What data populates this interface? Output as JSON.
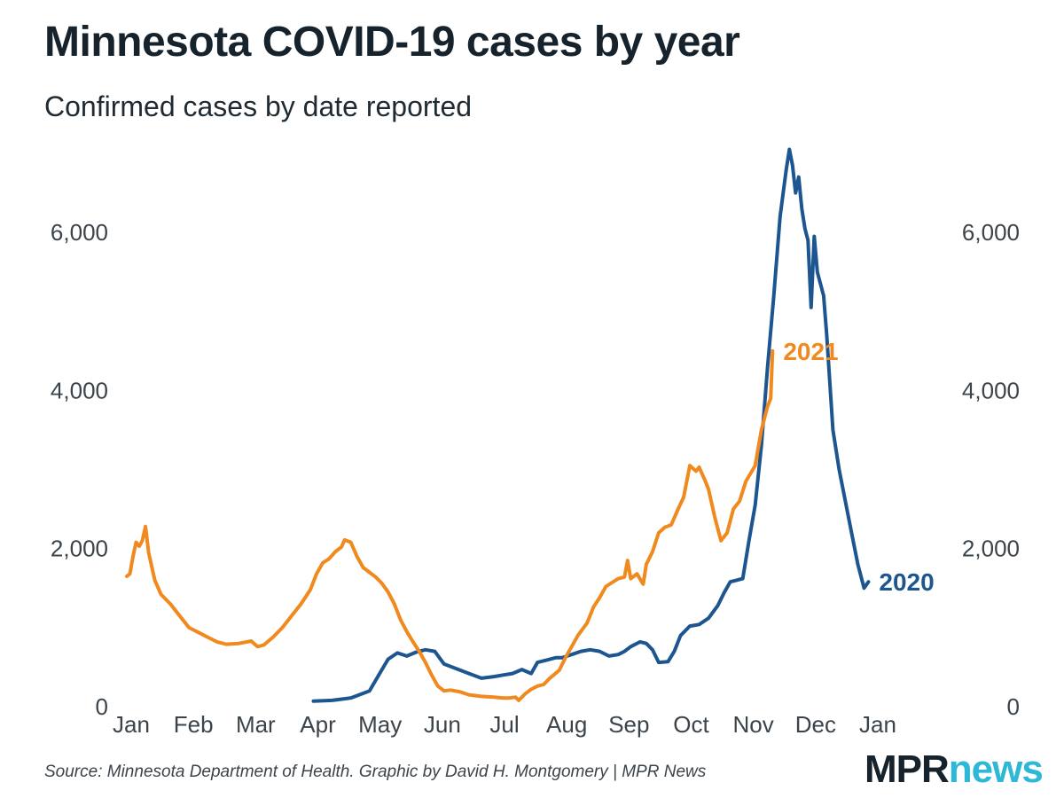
{
  "header": {
    "title": "Minnesota COVID-19 cases by year",
    "subtitle": "Confirmed cases by date reported"
  },
  "footer": {
    "source": "Source: Minnesota Department of Health. Graphic by David H. Montgomery | MPR News",
    "logo_part1": "MPR",
    "logo_part2": "news"
  },
  "colors": {
    "series_2020": "#1d5590",
    "series_2021": "#f0891e",
    "logo_accent": "#2cb8d6",
    "text": "#1f2a33"
  },
  "chart_data": {
    "type": "line",
    "title": "Minnesota COVID-19 cases by year",
    "subtitle": "Confirmed cases by date reported",
    "xlabel": "",
    "ylabel": "",
    "x_unit": "month index (0 = Jan 1, 12 = next Jan 1)",
    "xlim": [
      0,
      12
    ],
    "ylim": [
      0,
      7000
    ],
    "x_ticks": [
      {
        "x": 0,
        "label": "Jan"
      },
      {
        "x": 1,
        "label": "Feb"
      },
      {
        "x": 2,
        "label": "Mar"
      },
      {
        "x": 3,
        "label": "Apr"
      },
      {
        "x": 4,
        "label": "May"
      },
      {
        "x": 5,
        "label": "Jun"
      },
      {
        "x": 6,
        "label": "Jul"
      },
      {
        "x": 7,
        "label": "Aug"
      },
      {
        "x": 8,
        "label": "Sep"
      },
      {
        "x": 9,
        "label": "Oct"
      },
      {
        "x": 10,
        "label": "Nov"
      },
      {
        "x": 11,
        "label": "Dec"
      },
      {
        "x": 12,
        "label": "Jan"
      }
    ],
    "y_ticks": [
      {
        "y": 0,
        "label": "0"
      },
      {
        "y": 2000,
        "label": "2,000"
      },
      {
        "y": 4000,
        "label": "4,000"
      },
      {
        "y": 6000,
        "label": "6,000"
      }
    ],
    "grid": false,
    "series": [
      {
        "name": "2020",
        "label": "2020",
        "color": "#1d5590",
        "points": [
          [
            3.0,
            70
          ],
          [
            3.3,
            80
          ],
          [
            3.6,
            110
          ],
          [
            3.9,
            200
          ],
          [
            4.05,
            400
          ],
          [
            4.2,
            600
          ],
          [
            4.35,
            680
          ],
          [
            4.5,
            640
          ],
          [
            4.65,
            690
          ],
          [
            4.8,
            720
          ],
          [
            4.95,
            700
          ],
          [
            5.1,
            540
          ],
          [
            5.3,
            480
          ],
          [
            5.5,
            420
          ],
          [
            5.7,
            360
          ],
          [
            5.9,
            380
          ],
          [
            6.05,
            400
          ],
          [
            6.2,
            420
          ],
          [
            6.35,
            470
          ],
          [
            6.5,
            420
          ],
          [
            6.6,
            560
          ],
          [
            6.75,
            590
          ],
          [
            6.9,
            620
          ],
          [
            7.0,
            620
          ],
          [
            7.15,
            660
          ],
          [
            7.3,
            700
          ],
          [
            7.45,
            720
          ],
          [
            7.6,
            700
          ],
          [
            7.75,
            640
          ],
          [
            7.9,
            660
          ],
          [
            8.0,
            700
          ],
          [
            8.1,
            760
          ],
          [
            8.25,
            820
          ],
          [
            8.35,
            800
          ],
          [
            8.45,
            720
          ],
          [
            8.55,
            560
          ],
          [
            8.7,
            570
          ],
          [
            8.8,
            700
          ],
          [
            8.9,
            900
          ],
          [
            9.05,
            1020
          ],
          [
            9.2,
            1040
          ],
          [
            9.35,
            1120
          ],
          [
            9.5,
            1280
          ],
          [
            9.6,
            1440
          ],
          [
            9.7,
            1580
          ],
          [
            9.8,
            1600
          ],
          [
            9.9,
            1620
          ],
          [
            10.0,
            2100
          ],
          [
            10.1,
            2550
          ],
          [
            10.2,
            3300
          ],
          [
            10.3,
            4300
          ],
          [
            10.4,
            5200
          ],
          [
            10.5,
            6200
          ],
          [
            10.6,
            6800
          ],
          [
            10.65,
            7050
          ],
          [
            10.7,
            6850
          ],
          [
            10.75,
            6500
          ],
          [
            10.8,
            6700
          ],
          [
            10.85,
            6300
          ],
          [
            10.9,
            6050
          ],
          [
            10.95,
            5900
          ],
          [
            11.0,
            5050
          ],
          [
            11.05,
            5950
          ],
          [
            11.1,
            5500
          ],
          [
            11.2,
            5200
          ],
          [
            11.25,
            4700
          ],
          [
            11.35,
            3500
          ],
          [
            11.45,
            3000
          ],
          [
            11.55,
            2600
          ],
          [
            11.65,
            2200
          ],
          [
            11.75,
            1800
          ],
          [
            11.85,
            1500
          ],
          [
            11.92,
            1580
          ]
        ]
      },
      {
        "name": "2021",
        "label": "2021",
        "color": "#f0891e",
        "points": [
          [
            0.0,
            1650
          ],
          [
            0.05,
            1680
          ],
          [
            0.1,
            1900
          ],
          [
            0.15,
            2080
          ],
          [
            0.2,
            2030
          ],
          [
            0.25,
            2100
          ],
          [
            0.3,
            2280
          ],
          [
            0.35,
            1950
          ],
          [
            0.45,
            1600
          ],
          [
            0.55,
            1420
          ],
          [
            0.7,
            1300
          ],
          [
            0.85,
            1150
          ],
          [
            1.0,
            1000
          ],
          [
            1.15,
            940
          ],
          [
            1.3,
            880
          ],
          [
            1.45,
            820
          ],
          [
            1.6,
            790
          ],
          [
            1.8,
            800
          ],
          [
            2.0,
            830
          ],
          [
            2.1,
            760
          ],
          [
            2.2,
            780
          ],
          [
            2.35,
            880
          ],
          [
            2.5,
            1000
          ],
          [
            2.65,
            1150
          ],
          [
            2.8,
            1300
          ],
          [
            2.95,
            1480
          ],
          [
            3.05,
            1680
          ],
          [
            3.15,
            1820
          ],
          [
            3.25,
            1870
          ],
          [
            3.35,
            1960
          ],
          [
            3.45,
            2020
          ],
          [
            3.5,
            2110
          ],
          [
            3.6,
            2080
          ],
          [
            3.7,
            1900
          ],
          [
            3.8,
            1760
          ],
          [
            3.9,
            1700
          ],
          [
            4.0,
            1640
          ],
          [
            4.1,
            1560
          ],
          [
            4.2,
            1450
          ],
          [
            4.3,
            1300
          ],
          [
            4.4,
            1100
          ],
          [
            4.5,
            950
          ],
          [
            4.6,
            820
          ],
          [
            4.7,
            700
          ],
          [
            4.8,
            560
          ],
          [
            4.9,
            400
          ],
          [
            5.0,
            260
          ],
          [
            5.1,
            200
          ],
          [
            5.2,
            210
          ],
          [
            5.35,
            190
          ],
          [
            5.5,
            150
          ],
          [
            5.7,
            130
          ],
          [
            5.9,
            120
          ],
          [
            6.05,
            110
          ],
          [
            6.15,
            110
          ],
          [
            6.25,
            120
          ],
          [
            6.3,
            80
          ],
          [
            6.4,
            160
          ],
          [
            6.5,
            220
          ],
          [
            6.6,
            260
          ],
          [
            6.7,
            280
          ],
          [
            6.8,
            360
          ],
          [
            6.95,
            460
          ],
          [
            7.05,
            620
          ],
          [
            7.15,
            760
          ],
          [
            7.25,
            900
          ],
          [
            7.4,
            1060
          ],
          [
            7.5,
            1260
          ],
          [
            7.6,
            1380
          ],
          [
            7.7,
            1520
          ],
          [
            7.8,
            1570
          ],
          [
            7.9,
            1620
          ],
          [
            8.0,
            1640
          ],
          [
            8.05,
            1850
          ],
          [
            8.1,
            1620
          ],
          [
            8.2,
            1680
          ],
          [
            8.3,
            1550
          ],
          [
            8.35,
            1800
          ],
          [
            8.45,
            1960
          ],
          [
            8.55,
            2200
          ],
          [
            8.65,
            2270
          ],
          [
            8.75,
            2300
          ],
          [
            8.85,
            2480
          ],
          [
            8.95,
            2650
          ],
          [
            9.05,
            3050
          ],
          [
            9.15,
            2980
          ],
          [
            9.2,
            3030
          ],
          [
            9.3,
            2850
          ],
          [
            9.35,
            2750
          ],
          [
            9.45,
            2400
          ],
          [
            9.55,
            2100
          ],
          [
            9.65,
            2200
          ],
          [
            9.75,
            2500
          ],
          [
            9.85,
            2600
          ],
          [
            9.95,
            2850
          ],
          [
            10.1,
            3050
          ],
          [
            10.2,
            3500
          ],
          [
            10.3,
            3800
          ],
          [
            10.35,
            3900
          ],
          [
            10.38,
            4500
          ]
        ]
      }
    ]
  }
}
